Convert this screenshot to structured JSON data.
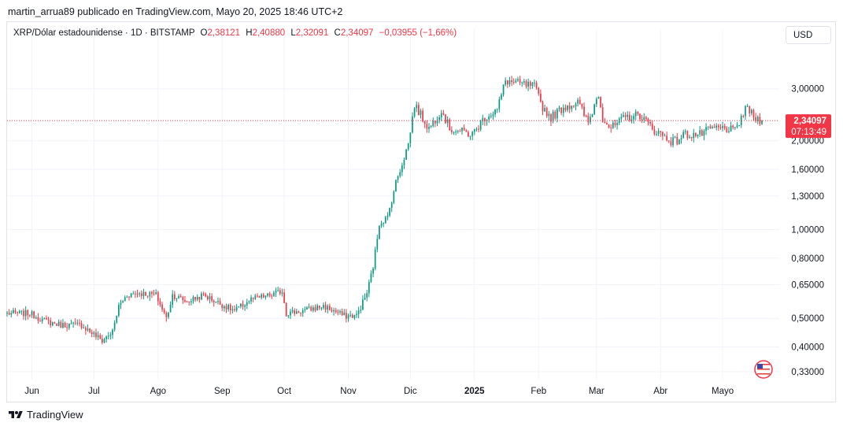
{
  "header": {
    "publisher": "martin_arrua89 publicado en TradingView.com, Mayo 20, 2025 18:46 UTC+2"
  },
  "legend": {
    "symbol": "XRP/Dólar estadounidense · 1D · BITSTAMP",
    "o_label": "O",
    "o_value": "2,38121",
    "h_label": "H",
    "h_value": "2,40880",
    "l_label": "L",
    "l_value": "2,32091",
    "c_label": "C",
    "c_value": "2,34097",
    "change": "−0,03955 (−1,66%)"
  },
  "currency_button": "USD",
  "price_tag": {
    "price": "2,34097",
    "countdown": "07:13:49"
  },
  "footer": {
    "brand": "TradingView"
  },
  "colors": {
    "up": "#089981",
    "down": "#f23645",
    "grid": "#f0f3fa",
    "text": "#131722"
  },
  "chart_data": {
    "type": "candlestick",
    "scale": "log",
    "ylim": [
      0.31,
      4.2
    ],
    "y_ticks": [
      {
        "value": 3.0,
        "label": "3,00000"
      },
      {
        "value": 2.0,
        "label": "2,00000"
      },
      {
        "value": 1.6,
        "label": "1,60000"
      },
      {
        "value": 1.3,
        "label": "1,30000"
      },
      {
        "value": 1.0,
        "label": "1,00000"
      },
      {
        "value": 0.8,
        "label": "0,80000"
      },
      {
        "value": 0.65,
        "label": "0,65000"
      },
      {
        "value": 0.5,
        "label": "0,50000"
      },
      {
        "value": 0.4,
        "label": "0,40000"
      },
      {
        "value": 0.33,
        "label": "0,33000"
      }
    ],
    "x_ticks": [
      {
        "date": "2024-06-01",
        "label": "Jun"
      },
      {
        "date": "2024-07-01",
        "label": "Jul"
      },
      {
        "date": "2024-08-01",
        "label": "Ago"
      },
      {
        "date": "2024-09-01",
        "label": "Sep"
      },
      {
        "date": "2024-10-01",
        "label": "Oct"
      },
      {
        "date": "2024-11-01",
        "label": "Nov"
      },
      {
        "date": "2024-12-01",
        "label": "Dic"
      },
      {
        "date": "2025-01-01",
        "label": "2025",
        "bold": true
      },
      {
        "date": "2025-02-01",
        "label": "Feb"
      },
      {
        "date": "2025-03-01",
        "label": "Mar"
      },
      {
        "date": "2025-04-01",
        "label": "Abr"
      },
      {
        "date": "2025-05-01",
        "label": "Mayo"
      }
    ],
    "last_price": 2.34097,
    "close_anchors": [
      [
        "2024-05-20",
        0.52
      ],
      [
        "2024-05-31",
        0.52
      ],
      [
        "2024-06-07",
        0.49
      ],
      [
        "2024-06-15",
        0.475
      ],
      [
        "2024-06-25",
        0.475
      ],
      [
        "2024-07-05",
        0.42
      ],
      [
        "2024-07-10",
        0.45
      ],
      [
        "2024-07-13",
        0.55
      ],
      [
        "2024-07-17",
        0.6
      ],
      [
        "2024-07-22",
        0.61
      ],
      [
        "2024-07-31",
        0.6
      ],
      [
        "2024-08-05",
        0.5
      ],
      [
        "2024-08-08",
        0.6
      ],
      [
        "2024-08-15",
        0.57
      ],
      [
        "2024-08-23",
        0.6
      ],
      [
        "2024-08-31",
        0.56
      ],
      [
        "2024-09-07",
        0.53
      ],
      [
        "2024-09-15",
        0.58
      ],
      [
        "2024-09-25",
        0.6
      ],
      [
        "2024-09-30",
        0.62
      ],
      [
        "2024-10-02",
        0.52
      ],
      [
        "2024-10-10",
        0.53
      ],
      [
        "2024-10-20",
        0.55
      ],
      [
        "2024-10-30",
        0.51
      ],
      [
        "2024-11-05",
        0.51
      ],
      [
        "2024-11-10",
        0.61
      ],
      [
        "2024-11-13",
        0.75
      ],
      [
        "2024-11-16",
        1.05
      ],
      [
        "2024-11-20",
        1.1
      ],
      [
        "2024-11-24",
        1.45
      ],
      [
        "2024-11-30",
        1.95
      ],
      [
        "2024-12-03",
        2.65
      ],
      [
        "2024-12-10",
        2.2
      ],
      [
        "2024-12-16",
        2.55
      ],
      [
        "2024-12-20",
        2.2
      ],
      [
        "2024-12-31",
        2.1
      ],
      [
        "2025-01-06",
        2.4
      ],
      [
        "2025-01-12",
        2.55
      ],
      [
        "2025-01-16",
        3.2
      ],
      [
        "2025-01-20",
        3.15
      ],
      [
        "2025-01-30",
        3.05
      ],
      [
        "2025-02-03",
        2.6
      ],
      [
        "2025-02-07",
        2.4
      ],
      [
        "2025-02-13",
        2.6
      ],
      [
        "2025-02-20",
        2.7
      ],
      [
        "2025-02-25",
        2.3
      ],
      [
        "2025-03-02",
        2.9
      ],
      [
        "2025-03-04",
        2.4
      ],
      [
        "2025-03-08",
        2.2
      ],
      [
        "2025-03-15",
        2.4
      ],
      [
        "2025-03-22",
        2.45
      ],
      [
        "2025-03-28",
        2.2
      ],
      [
        "2025-04-06",
        2.0
      ],
      [
        "2025-04-09",
        2.0
      ],
      [
        "2025-04-12",
        2.1
      ],
      [
        "2025-04-20",
        2.1
      ],
      [
        "2025-04-26",
        2.2
      ],
      [
        "2025-05-03",
        2.2
      ],
      [
        "2025-05-07",
        2.15
      ],
      [
        "2025-05-10",
        2.4
      ],
      [
        "2025-05-13",
        2.6
      ],
      [
        "2025-05-16",
        2.4
      ],
      [
        "2025-05-20",
        2.34
      ]
    ]
  }
}
